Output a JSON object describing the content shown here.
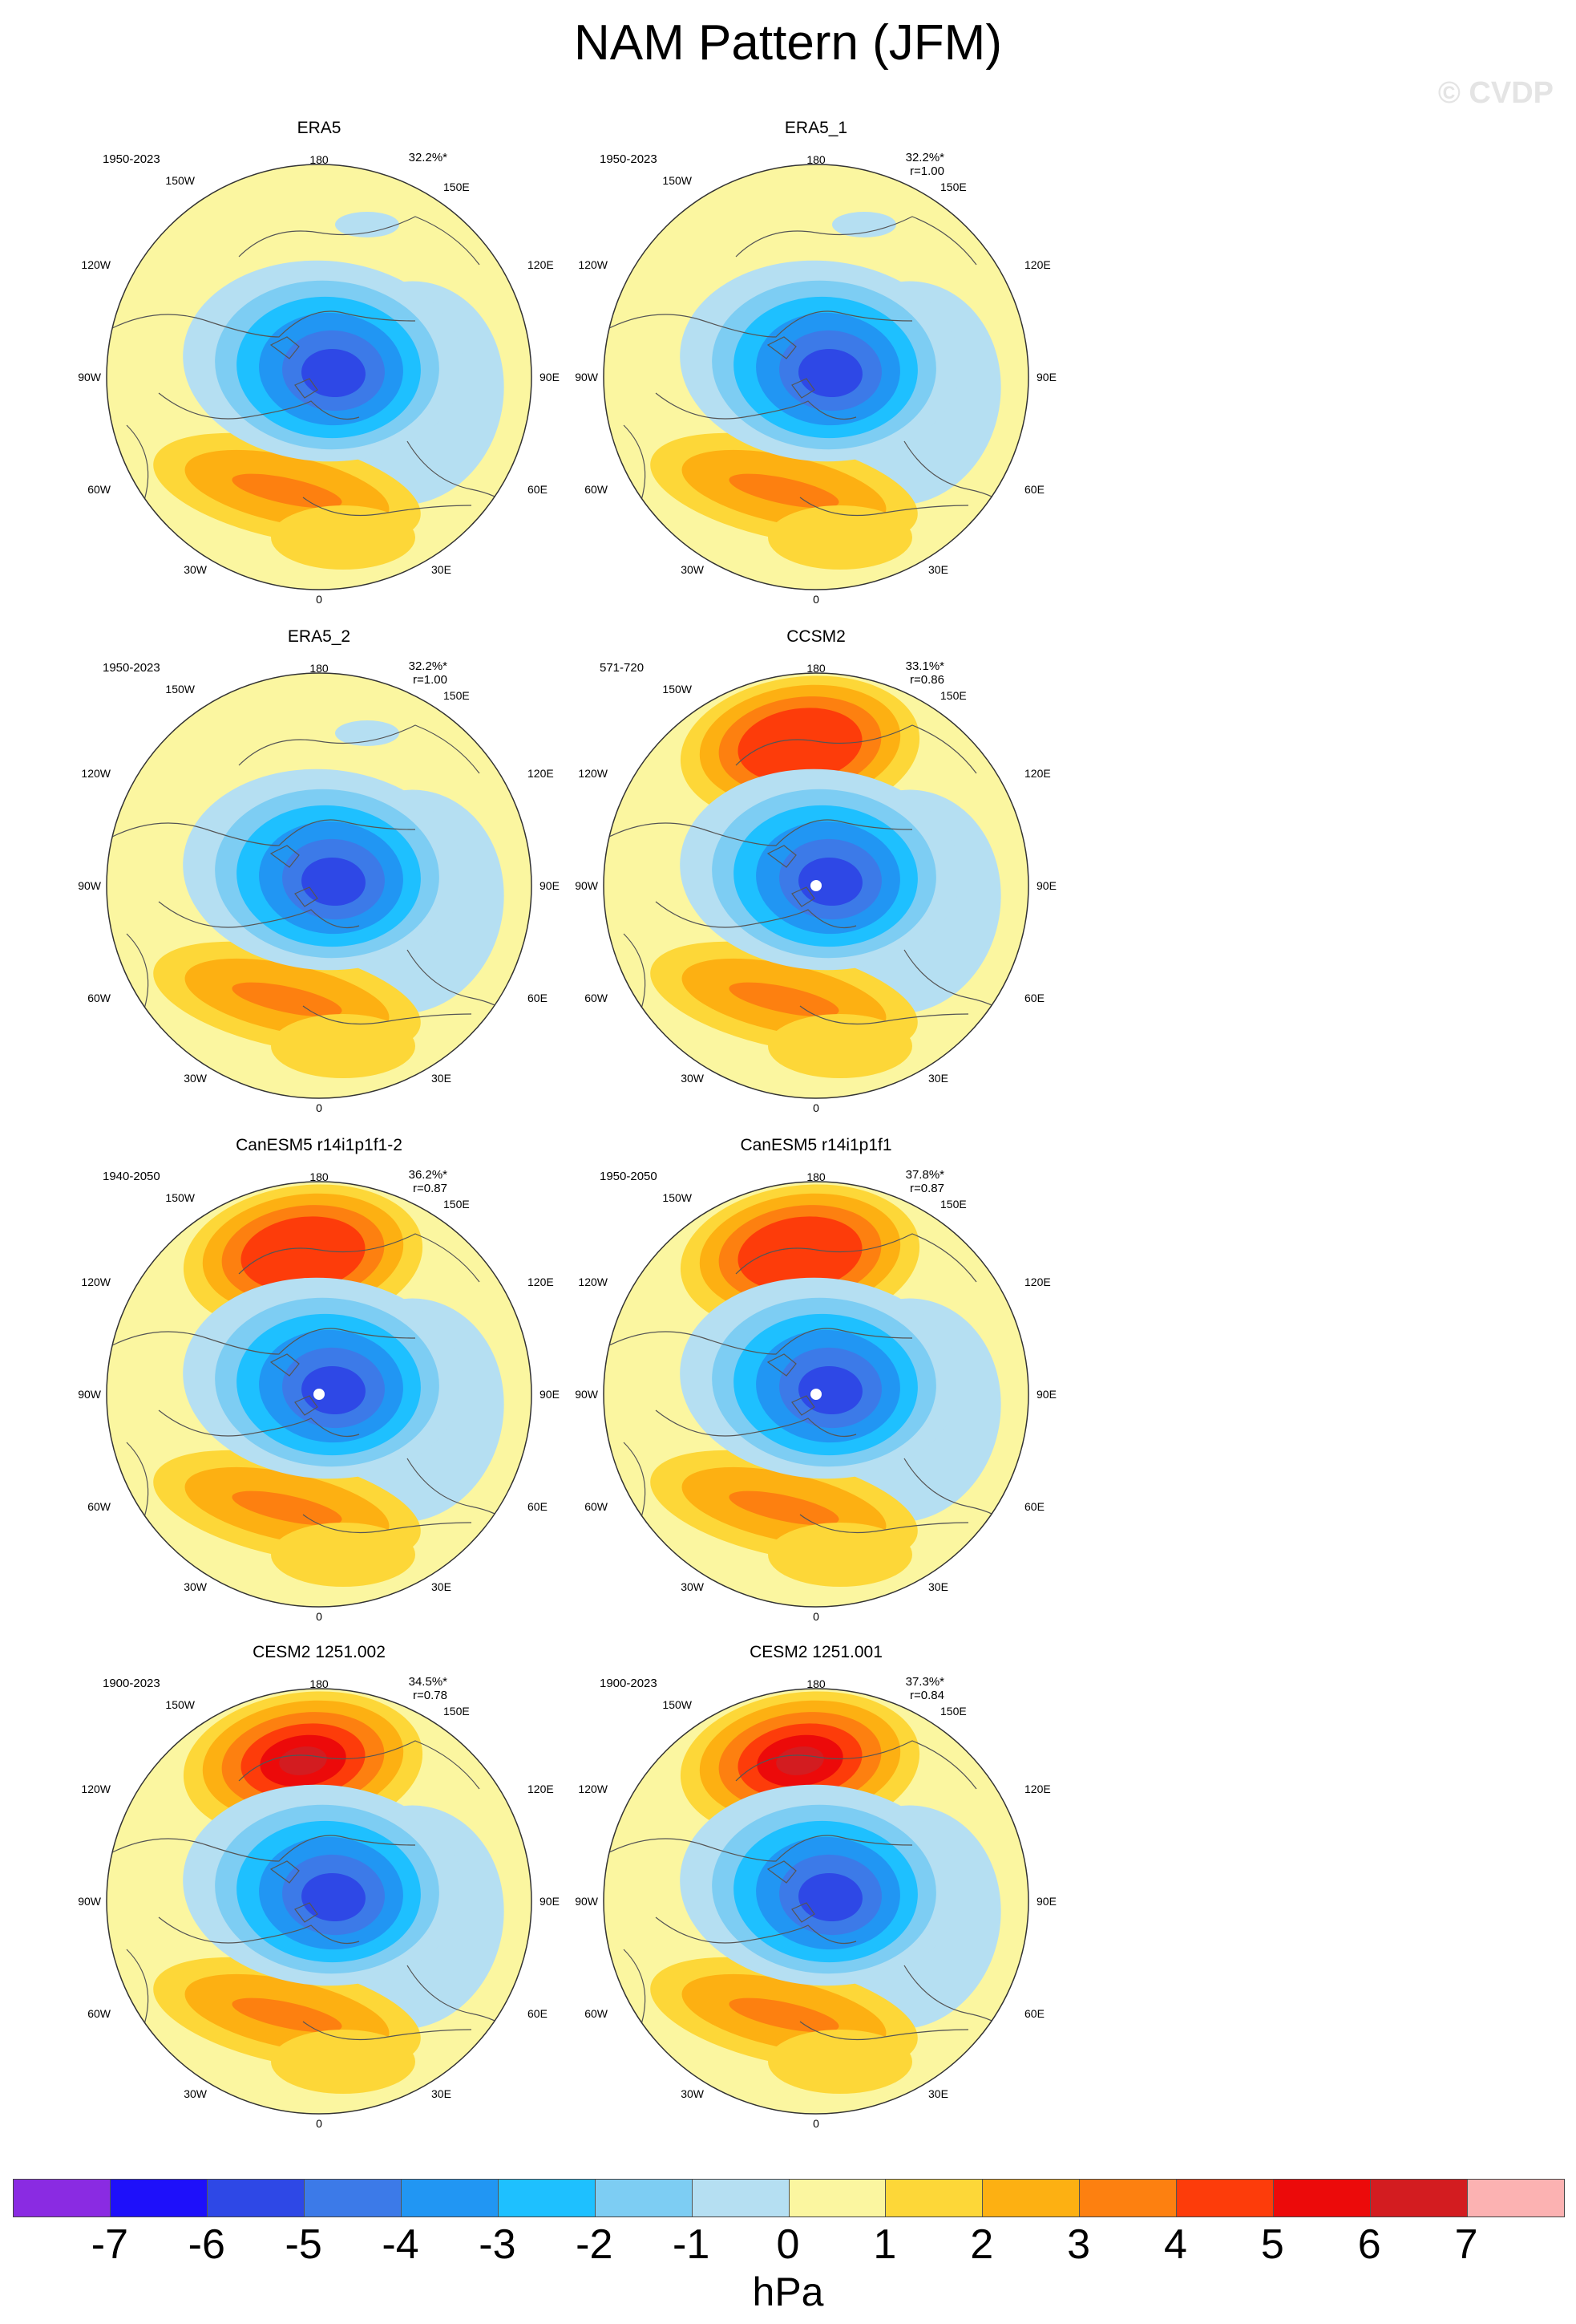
{
  "title": "NAM Pattern (JFM)",
  "watermark": "© CVDP",
  "lon_labels": {
    "top": "180",
    "top_left": "150W",
    "top_right": "150E",
    "upper_left": "120W",
    "upper_right": "120E",
    "left": "90W",
    "right": "90E",
    "lower_left": "60W",
    "lower_right": "60E",
    "bottom_left": "30W",
    "bottom_right": "30E",
    "bottom": "0"
  },
  "panels": [
    {
      "name": "ERA5",
      "years": "1950-2023",
      "pct": "32.2%*",
      "r": "",
      "dot": false,
      "pacific": 0
    },
    {
      "name": "ERA5_1",
      "years": "1950-2023",
      "pct": "32.2%*",
      "r": "r=1.00",
      "dot": false,
      "pacific": 0
    },
    {
      "name": "ERA5_2",
      "years": "1950-2023",
      "pct": "32.2%*",
      "r": "r=1.00",
      "dot": false,
      "pacific": 0
    },
    {
      "name": "CCSM2",
      "years": "571-720",
      "pct": "33.1%*",
      "r": "r=0.86",
      "dot": true,
      "pacific": 4
    },
    {
      "name": "CanESM5 r14i1p1f1-2",
      "years": "1940-2050",
      "pct": "36.2%*",
      "r": "r=0.87",
      "dot": true,
      "pacific": 4
    },
    {
      "name": "CanESM5 r14i1p1f1",
      "years": "1950-2050",
      "pct": "37.8%*",
      "r": "r=0.87",
      "dot": true,
      "pacific": 4
    },
    {
      "name": "CESM2 1251.002",
      "years": "1900-2023",
      "pct": "34.5%*",
      "r": "r=0.78",
      "dot": false,
      "pacific": 6
    },
    {
      "name": "CESM2 1251.001",
      "years": "1900-2023",
      "pct": "37.3%*",
      "r": "r=0.84",
      "dot": false,
      "pacific": 6
    }
  ],
  "colorbar": {
    "colors": [
      "#8a2be2",
      "#1e10fa",
      "#2e48e6",
      "#3c7ae8",
      "#2196f3",
      "#1ec0ff",
      "#7dcdf3",
      "#b5dff2",
      "#fbf6a0",
      "#fdd738",
      "#fdb012",
      "#fd8010",
      "#fd3c0a",
      "#ec0a0a",
      "#d31c20",
      "#fcb2b2"
    ],
    "ticks": [
      "-7",
      "-6",
      "-5",
      "-4",
      "-3",
      "-2",
      "-1",
      "0",
      "1",
      "2",
      "3",
      "4",
      "5",
      "6",
      "7"
    ],
    "units": "hPa"
  }
}
